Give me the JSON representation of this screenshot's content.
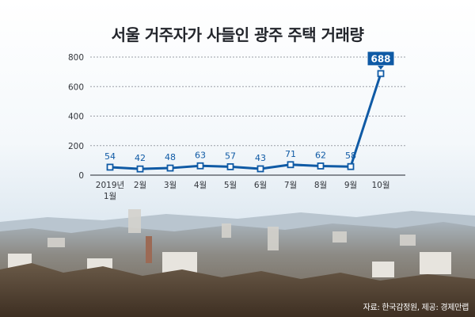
{
  "page": {
    "title": "서울 거주자가 사들인 광주 주택 거래량",
    "source": "자료: 한국감정원, 제공: 경제만랩"
  },
  "chart_data": {
    "type": "line",
    "title": "서울 거주자가 사들인 광주 주택 거래량",
    "categories": [
      "2019년 1월",
      "2월",
      "3월",
      "4월",
      "5월",
      "6월",
      "7월",
      "8월",
      "9월",
      "10월"
    ],
    "series": [
      {
        "values": [
          54,
          42,
          48,
          63,
          57,
          43,
          71,
          62,
          58,
          688
        ]
      }
    ],
    "ylim": [
      0,
      800
    ],
    "yticks": [
      0,
      200,
      400,
      600,
      800
    ],
    "grid": true,
    "highlight_index": 9,
    "colors": {
      "line": "#0f5aa5",
      "marker_fill": "#ffffff",
      "highlight_box": "#0f5aa5",
      "grid": "#9a9ea6",
      "axis_text": "#33363c"
    }
  }
}
